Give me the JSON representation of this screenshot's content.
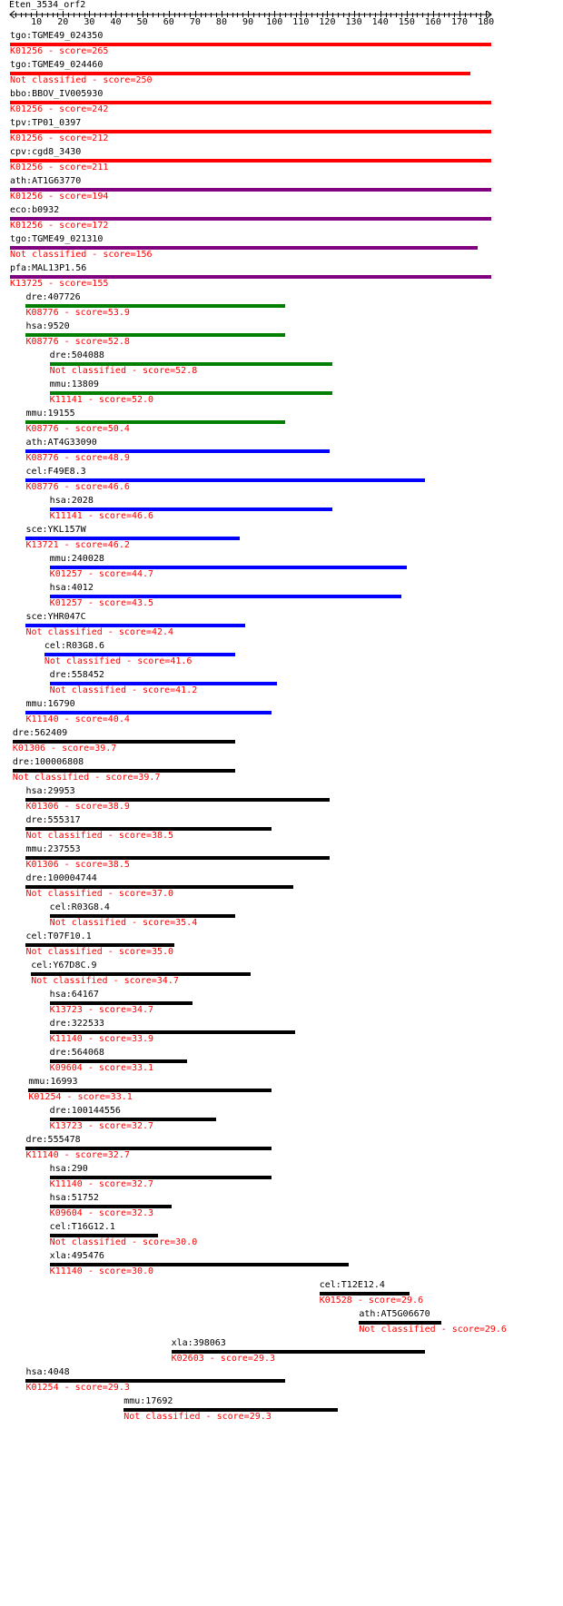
{
  "title": "Eten_3534_orf2",
  "axis": {
    "min": 0,
    "max": 182,
    "labels": [
      10,
      20,
      30,
      40,
      50,
      60,
      70,
      80,
      90,
      100,
      110,
      120,
      130,
      140,
      150,
      160,
      170,
      180
    ]
  },
  "colors": {
    "label": "#000000",
    "score": "#ff0000",
    "red": "#ff0000",
    "purple": "#800080",
    "green": "#008000",
    "blue": "#0000ff",
    "black": "#000000"
  },
  "hits": [
    {
      "name": "tgo:TGME49_024350",
      "info": "K01256 - score=265",
      "start": 0,
      "end": 182,
      "color": "red"
    },
    {
      "name": "tgo:TGME49_024460",
      "info": "Not classified - score=250",
      "start": 0,
      "end": 174,
      "color": "red"
    },
    {
      "name": "bbo:BBOV_IV005930",
      "info": "K01256 - score=242",
      "start": 0,
      "end": 182,
      "color": "red"
    },
    {
      "name": "tpv:TP01_0397",
      "info": "K01256 - score=212",
      "start": 0,
      "end": 182,
      "color": "red"
    },
    {
      "name": "cpv:cgd8_3430",
      "info": "K01256 - score=211",
      "start": 0,
      "end": 182,
      "color": "red"
    },
    {
      "name": "ath:AT1G63770",
      "info": "K01256 - score=194",
      "start": 0,
      "end": 182,
      "color": "purple"
    },
    {
      "name": "eco:b0932",
      "info": "K01256 - score=172",
      "start": 0,
      "end": 182,
      "color": "purple"
    },
    {
      "name": "tgo:TGME49_021310",
      "info": "Not classified - score=156",
      "start": 0,
      "end": 177,
      "color": "purple"
    },
    {
      "name": "pfa:MAL13P1.56",
      "info": "K13725 - score=155",
      "start": 0,
      "end": 182,
      "color": "purple"
    },
    {
      "name": "dre:407726",
      "info": "K08776 - score=53.9",
      "start": 6,
      "end": 104,
      "color": "green"
    },
    {
      "name": "hsa:9520",
      "info": "K08776 - score=52.8",
      "start": 6,
      "end": 104,
      "color": "green"
    },
    {
      "name": "dre:504088",
      "info": "Not classified - score=52.8",
      "start": 15,
      "end": 122,
      "color": "green"
    },
    {
      "name": "mmu:13809",
      "info": "K11141 - score=52.0",
      "start": 15,
      "end": 122,
      "color": "green"
    },
    {
      "name": "mmu:19155",
      "info": "K08776 - score=50.4",
      "start": 6,
      "end": 104,
      "color": "green"
    },
    {
      "name": "ath:AT4G33090",
      "info": "K08776 - score=48.9",
      "start": 6,
      "end": 121,
      "color": "blue"
    },
    {
      "name": "cel:F49E8.3",
      "info": "K08776 - score=46.6",
      "start": 6,
      "end": 157,
      "color": "blue"
    },
    {
      "name": "hsa:2028",
      "info": "K11141 - score=46.6",
      "start": 15,
      "end": 122,
      "color": "blue"
    },
    {
      "name": "sce:YKL157W",
      "info": "K13721 - score=46.2",
      "start": 6,
      "end": 87,
      "color": "blue"
    },
    {
      "name": "mmu:240028",
      "info": "K01257 - score=44.7",
      "start": 15,
      "end": 150,
      "color": "blue"
    },
    {
      "name": "hsa:4012",
      "info": "K01257 - score=43.5",
      "start": 15,
      "end": 148,
      "color": "blue"
    },
    {
      "name": "sce:YHR047C",
      "info": "Not classified - score=42.4",
      "start": 6,
      "end": 89,
      "color": "blue"
    },
    {
      "name": "cel:R03G8.6",
      "info": "Not classified - score=41.6",
      "start": 13,
      "end": 85,
      "color": "blue"
    },
    {
      "name": "dre:558452",
      "info": "Not classified - score=41.2",
      "start": 15,
      "end": 101,
      "color": "blue"
    },
    {
      "name": "mmu:16790",
      "info": "K11140 - score=40.4",
      "start": 6,
      "end": 99,
      "color": "blue"
    },
    {
      "name": "dre:562409",
      "info": "K01306 - score=39.7",
      "start": 1,
      "end": 85,
      "color": "black"
    },
    {
      "name": "dre:100006808",
      "info": "Not classified - score=39.7",
      "start": 1,
      "end": 85,
      "color": "black"
    },
    {
      "name": "hsa:29953",
      "info": "K01306 - score=38.9",
      "start": 6,
      "end": 121,
      "color": "black"
    },
    {
      "name": "dre:555317",
      "info": "Not classified - score=38.5",
      "start": 6,
      "end": 99,
      "color": "black"
    },
    {
      "name": "mmu:237553",
      "info": "K01306 - score=38.5",
      "start": 6,
      "end": 121,
      "color": "black"
    },
    {
      "name": "dre:100004744",
      "info": "Not classified - score=37.0",
      "start": 6,
      "end": 107,
      "color": "black"
    },
    {
      "name": "cel:R03G8.4",
      "info": "Not classified - score=35.4",
      "start": 15,
      "end": 85,
      "color": "black"
    },
    {
      "name": "cel:T07F10.1",
      "info": "Not classified - score=35.0",
      "start": 6,
      "end": 62,
      "color": "black"
    },
    {
      "name": "cel:Y67D8C.9",
      "info": "Not classified - score=34.7",
      "start": 8,
      "end": 91,
      "color": "black"
    },
    {
      "name": "hsa:64167",
      "info": "K13723 - score=34.7",
      "start": 15,
      "end": 69,
      "color": "black"
    },
    {
      "name": "dre:322533",
      "info": "K11140 - score=33.9",
      "start": 15,
      "end": 108,
      "color": "black"
    },
    {
      "name": "dre:564068",
      "info": "K09604 - score=33.1",
      "start": 15,
      "end": 67,
      "color": "black"
    },
    {
      "name": "mmu:16993",
      "info": "K01254 - score=33.1",
      "start": 7,
      "end": 99,
      "color": "black"
    },
    {
      "name": "dre:100144556",
      "info": "K13723 - score=32.7",
      "start": 15,
      "end": 78,
      "color": "black"
    },
    {
      "name": "dre:555478",
      "info": "K11140 - score=32.7",
      "start": 6,
      "end": 99,
      "color": "black"
    },
    {
      "name": "hsa:290",
      "info": "K11140 - score=32.7",
      "start": 15,
      "end": 99,
      "color": "black"
    },
    {
      "name": "hsa:51752",
      "info": "K09604 - score=32.3",
      "start": 15,
      "end": 61,
      "color": "black"
    },
    {
      "name": "cel:T16G12.1",
      "info": "Not classified - score=30.0",
      "start": 15,
      "end": 56,
      "color": "black"
    },
    {
      "name": "xla:495476",
      "info": "K11140 - score=30.0",
      "start": 15,
      "end": 128,
      "color": "black"
    },
    {
      "name": "cel:T12E12.4",
      "info": "K01528 - score=29.6",
      "start": 117,
      "end": 151,
      "color": "black"
    },
    {
      "name": "ath:AT5G06670",
      "info": "Not classified - score=29.6",
      "start": 132,
      "end": 163,
      "color": "black"
    },
    {
      "name": "xla:398063",
      "info": "K02603 - score=29.3",
      "start": 61,
      "end": 157,
      "color": "black"
    },
    {
      "name": "hsa:4048",
      "info": "K01254 - score=29.3",
      "start": 6,
      "end": 104,
      "color": "black"
    },
    {
      "name": "mmu:17692",
      "info": "Not classified - score=29.3",
      "start": 43,
      "end": 124,
      "color": "black"
    }
  ]
}
